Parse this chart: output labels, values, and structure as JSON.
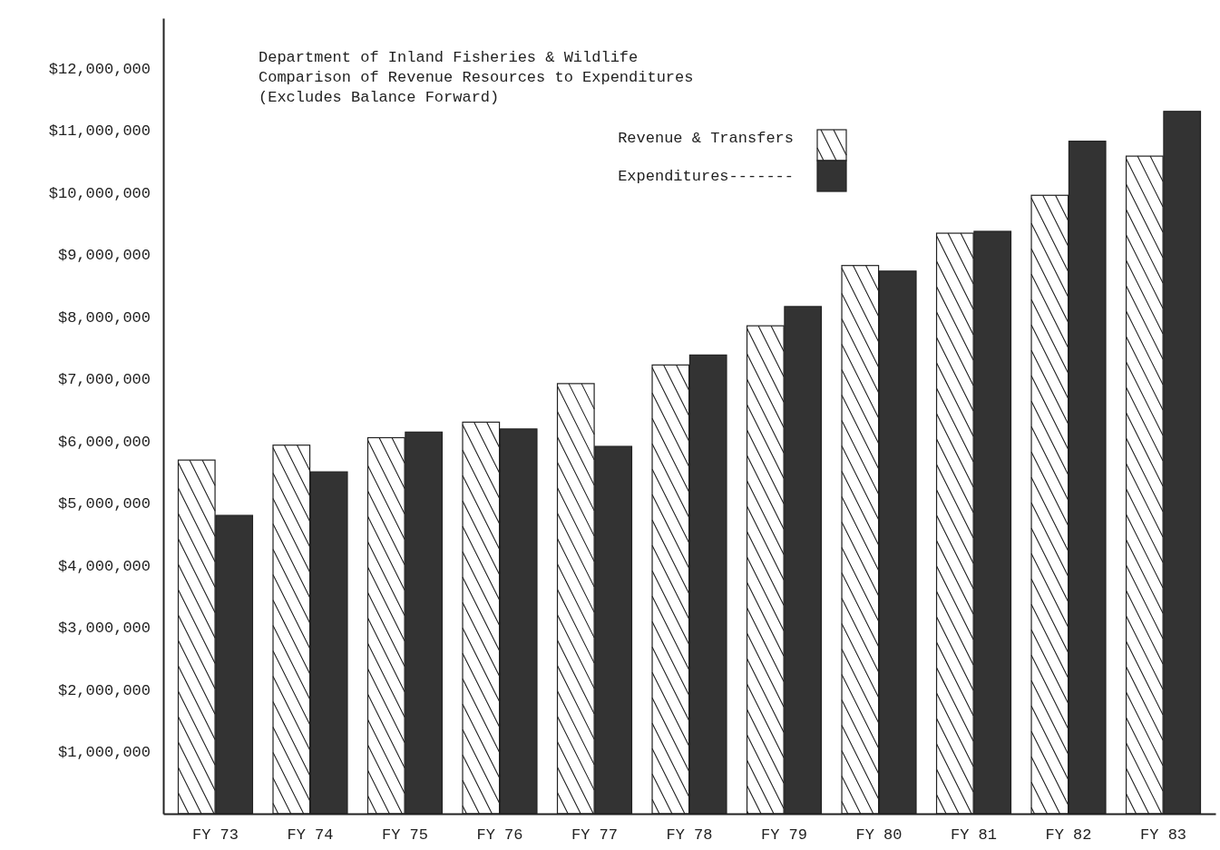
{
  "chart_data": {
    "type": "bar",
    "title": "Department of Inland Fisheries & Wildlife\nComparison of Revenue Resources to Expenditures\n(Excludes Balance Forward)",
    "categories": [
      "FY 73",
      "FY 74",
      "FY 75",
      "FY 76",
      "FY 77",
      "FY 78",
      "FY 79",
      "FY 80",
      "FY 81",
      "FY 82",
      "FY 83"
    ],
    "series": [
      {
        "name": "Revenue & Transfers",
        "color": "#ffffff",
        "values": [
          5690000,
          5930000,
          6050000,
          6300000,
          6920000,
          7220000,
          7850000,
          8820000,
          9340000,
          9950000,
          10580000
        ]
      },
      {
        "name": "Expenditures-------",
        "color": "#333333",
        "values": [
          4800000,
          5500000,
          6140000,
          6190000,
          5910000,
          7380000,
          8160000,
          8730000,
          9370000,
          10820000,
          11300000
        ]
      }
    ],
    "ylim": [
      0,
      12800000
    ],
    "yticks": [
      {
        "value": 1000000,
        "label": "$1,000,000"
      },
      {
        "value": 2000000,
        "label": "$2,000,000"
      },
      {
        "value": 3000000,
        "label": "$3,000,000"
      },
      {
        "value": 4000000,
        "label": "$4,000,000"
      },
      {
        "value": 5000000,
        "label": "$5,000,000"
      },
      {
        "value": 6000000,
        "label": "$6,000,000"
      },
      {
        "value": 7000000,
        "label": "$7,000,000"
      },
      {
        "value": 8000000,
        "label": "$8,000,000"
      },
      {
        "value": 9000000,
        "label": "$9,000,000"
      },
      {
        "value": 10000000,
        "label": "$10,000,000"
      },
      {
        "value": 11000000,
        "label": "$11,000,000"
      },
      {
        "value": 12000000,
        "label": "$12,000,000"
      }
    ],
    "grid": false,
    "legend": "top right"
  }
}
